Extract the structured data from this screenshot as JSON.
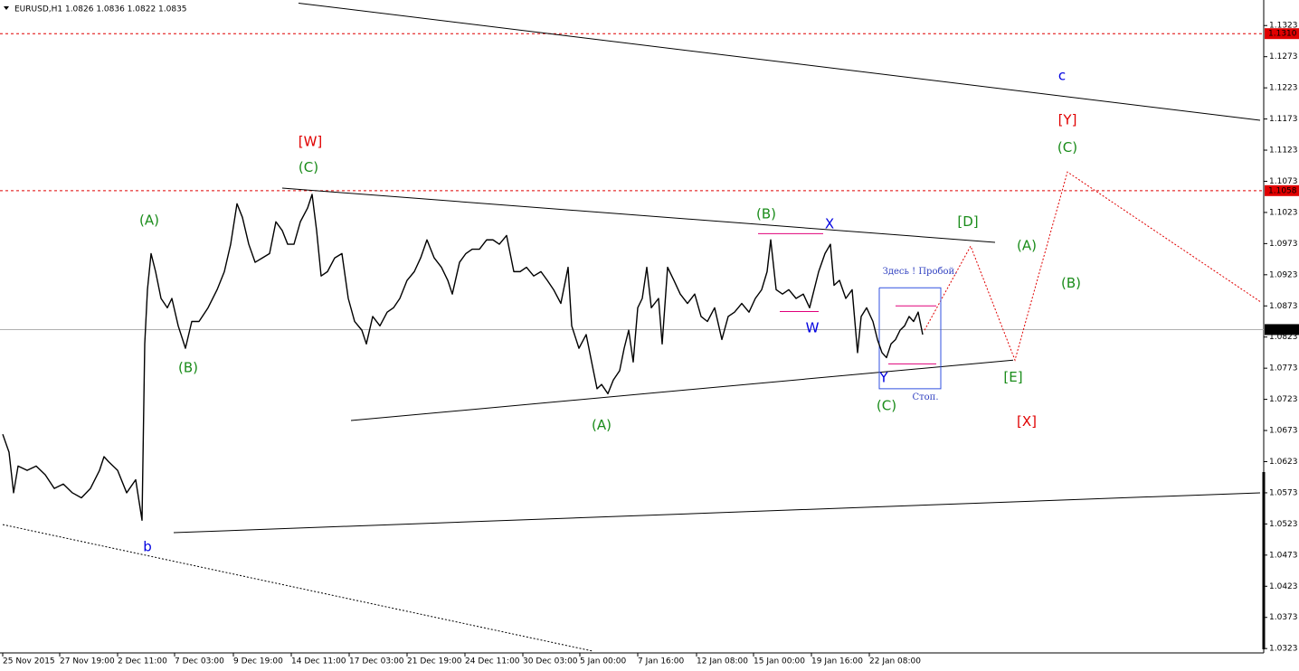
{
  "chart_data": {
    "type": "line",
    "title": "EURUSD,H1  1.0826 1.0836 1.0822 1.0835",
    "xlim": [
      0,
      1396
    ],
    "ylim": [
      1.0316,
      1.1364
    ],
    "xticks": [
      {
        "value": 3,
        "label": "25 Nov 2015"
      },
      {
        "value": 66,
        "label": "27 Nov 19:00"
      },
      {
        "value": 130,
        "label": "2 Dec 11:00"
      },
      {
        "value": 193,
        "label": "7 Dec 03:00"
      },
      {
        "value": 258,
        "label": "9 Dec 19:00"
      },
      {
        "value": 322,
        "label": "14 Dec 11:00"
      },
      {
        "value": 386,
        "label": "17 Dec 03:00"
      },
      {
        "value": 450,
        "label": "21 Dec 19:00"
      },
      {
        "value": 514,
        "label": "24 Dec 11:00"
      },
      {
        "value": 578,
        "label": "30 Dec 03:00"
      },
      {
        "value": 641,
        "label": "5 Jan 00:00"
      },
      {
        "value": 705,
        "label": "7 Jan 16:00"
      },
      {
        "value": 770,
        "label": "12 Jan 08:00"
      },
      {
        "value": 833,
        "label": "15 Jan 00:00"
      },
      {
        "value": 897,
        "label": "19 Jan 16:00"
      },
      {
        "value": 961,
        "label": "22 Jan 08:00"
      }
    ],
    "yticks": [
      1.1323,
      1.1273,
      1.1223,
      1.1173,
      1.1123,
      1.1073,
      1.1023,
      1.0973,
      1.0923,
      1.0873,
      1.0823,
      1.0773,
      1.0723,
      1.0673,
      1.0623,
      1.0573,
      1.0523,
      1.0473,
      1.0423,
      1.0373,
      1.0323
    ],
    "levels": [
      {
        "value": 1.131,
        "label": "1.1310",
        "color": "#e00000",
        "style": "dashed"
      },
      {
        "value": 1.1058,
        "label": "1.1058",
        "color": "#e00000",
        "style": "dashed"
      },
      {
        "value": 1.0835,
        "label": "1.0835",
        "color": "#b0b0b0",
        "style": "solid"
      }
    ],
    "series": [
      {
        "name": "EURUSD",
        "color": "#000000",
        "x": [
          3,
          10,
          15,
          20,
          30,
          40,
          50,
          60,
          70,
          80,
          90,
          100,
          110,
          115,
          120,
          130,
          140,
          150,
          157,
          160,
          163,
          167,
          172,
          178,
          185,
          190,
          197,
          205,
          212,
          220,
          230,
          240,
          248,
          255,
          262,
          268,
          275,
          282,
          290,
          298,
          305,
          312,
          318,
          325,
          332,
          340,
          345,
          350,
          355,
          362,
          370,
          378,
          385,
          392,
          400,
          405,
          412,
          420,
          428,
          435,
          442,
          450,
          458,
          465,
          472,
          480,
          488,
          495,
          500,
          508,
          515,
          522,
          530,
          538,
          545,
          552,
          560,
          568,
          575,
          582,
          590,
          598,
          605,
          612,
          620,
          628,
          632,
          640,
          648,
          655,
          660,
          665,
          672,
          678,
          685,
          690,
          695,
          700,
          705,
          710,
          715,
          720,
          728,
          732,
          738,
          745,
          752,
          760,
          768,
          775,
          782,
          790,
          798,
          805,
          812,
          820,
          828,
          835,
          842,
          848,
          852,
          858,
          865,
          872,
          880,
          888,
          895,
          900,
          905,
          912,
          918,
          922,
          928,
          935,
          942,
          948,
          952,
          958,
          965,
          970,
          975,
          980,
          985,
          990,
          995,
          1000,
          1005,
          1010,
          1015,
          1020
        ],
        "values": [
          1.0667,
          1.0638,
          1.0573,
          1.0616,
          1.0609,
          1.0616,
          1.0602,
          1.058,
          1.0587,
          1.0573,
          1.0565,
          1.058,
          1.0609,
          1.0631,
          1.0623,
          1.0609,
          1.0573,
          1.0594,
          1.0529,
          1.0812,
          1.0899,
          1.0957,
          1.0928,
          1.0885,
          1.087,
          1.0885,
          1.0841,
          1.0805,
          1.0848,
          1.0848,
          1.087,
          1.0899,
          1.0928,
          1.0972,
          1.1037,
          1.1015,
          1.0972,
          1.0943,
          1.095,
          1.0957,
          1.1008,
          1.0994,
          1.0972,
          1.0972,
          1.1008,
          1.103,
          1.1052,
          1.0994,
          1.0921,
          1.0928,
          1.095,
          1.0957,
          1.0885,
          1.0848,
          1.0834,
          1.0812,
          1.0856,
          1.0841,
          1.0863,
          1.087,
          1.0885,
          1.0914,
          1.0928,
          1.095,
          1.0979,
          1.095,
          1.0935,
          1.0914,
          1.0892,
          1.0943,
          1.0957,
          1.0964,
          1.0964,
          1.0979,
          1.0979,
          1.0972,
          1.0986,
          1.0928,
          1.0928,
          1.0935,
          1.0921,
          1.0928,
          1.0914,
          1.0899,
          1.0877,
          1.0935,
          1.0841,
          1.0805,
          1.0827,
          1.0776,
          1.074,
          1.0747,
          1.0732,
          1.0754,
          1.0769,
          1.0805,
          1.0834,
          1.0783,
          1.087,
          1.0885,
          1.0935,
          1.087,
          1.0885,
          1.0812,
          1.0935,
          1.0914,
          1.0892,
          1.0877,
          1.0892,
          1.0856,
          1.0848,
          1.087,
          1.0819,
          1.0856,
          1.0863,
          1.0877,
          1.0863,
          1.0885,
          1.0899,
          1.0928,
          1.0979,
          1.0899,
          1.0892,
          1.0899,
          1.0885,
          1.0892,
          1.087,
          1.0899,
          1.0928,
          1.0957,
          1.0972,
          1.0906,
          1.0914,
          1.0885,
          1.0899,
          1.0798,
          1.0856,
          1.087,
          1.0848,
          1.0819,
          1.0798,
          1.079,
          1.0812,
          1.0819,
          1.0834,
          1.0841,
          1.0856,
          1.0848,
          1.0863,
          1.0827
        ]
      }
    ],
    "lines": [
      {
        "x": [
          330,
          1393
        ],
        "y": [
          1.1359,
          1.1171
        ],
        "color": "#000000",
        "style": "solid"
      },
      {
        "x": [
          312,
          1100
        ],
        "y": [
          1.1062,
          1.0975
        ],
        "color": "#000000",
        "style": "solid"
      },
      {
        "x": [
          388,
          1120
        ],
        "y": [
          1.0689,
          1.0786
        ],
        "color": "#000000",
        "style": "solid"
      },
      {
        "x": [
          192,
          1393
        ],
        "y": [
          1.0509,
          1.0573
        ],
        "color": "#000000",
        "style": "solid"
      },
      {
        "x": [
          3,
          655
        ],
        "y": [
          1.0522,
          1.0319
        ],
        "color": "#000000",
        "style": "dotted"
      },
      {
        "x": [
          1022,
          1073,
          1122,
          1180,
          1393
        ],
        "y": [
          1.0834,
          1.0969,
          1.0786,
          1.1088,
          1.088
        ],
        "color": "#e00000",
        "style": "dotted"
      },
      {
        "x": [
          838,
          910
        ],
        "y": [
          1.0989,
          1.0989
        ],
        "color": "#e0007a",
        "style": "solid"
      },
      {
        "x": [
          862,
          905
        ],
        "y": [
          1.0864,
          1.0864
        ],
        "color": "#e0007a",
        "style": "solid"
      },
      {
        "x": [
          990,
          1035
        ],
        "y": [
          1.0873,
          1.0873
        ],
        "color": "#e0007a",
        "style": "solid"
      },
      {
        "x": [
          982,
          1035
        ],
        "y": [
          1.078,
          1.078
        ],
        "color": "#e0007a",
        "style": "solid"
      },
      {
        "x": [
          972,
          1040,
          1040,
          972,
          972
        ],
        "y": [
          1.0902,
          1.0902,
          1.074,
          1.074,
          1.0902
        ],
        "color": "#3050e0",
        "style": "solid"
      }
    ],
    "annotations": [
      {
        "text": "[W]",
        "x": 343,
        "y": 1.1136,
        "color": "#e00000"
      },
      {
        "text": "(C)",
        "x": 341,
        "y": 1.1095,
        "color": "#1a8c1a"
      },
      {
        "text": "(A)",
        "x": 165,
        "y": 1.101,
        "color": "#1a8c1a"
      },
      {
        "text": "(B)",
        "x": 208,
        "y": 1.0773,
        "color": "#1a8c1a"
      },
      {
        "text": "b",
        "x": 163,
        "y": 1.0486,
        "color": "#0000e0"
      },
      {
        "text": "(A)",
        "x": 665,
        "y": 1.0681,
        "color": "#1a8c1a"
      },
      {
        "text": "(B)",
        "x": 847,
        "y": 1.102,
        "color": "#1a8c1a"
      },
      {
        "text": "X",
        "x": 917,
        "y": 1.1004,
        "color": "#0000e0"
      },
      {
        "text": "W",
        "x": 898,
        "y": 1.0837,
        "color": "#0000e0"
      },
      {
        "text": "Y",
        "x": 977,
        "y": 1.0757,
        "color": "#0000e0"
      },
      {
        "text": "(C)",
        "x": 980,
        "y": 1.0712,
        "color": "#1a8c1a"
      },
      {
        "text": "Здесь ! Пробой.",
        "x": 1017,
        "y": 1.0928,
        "color": "#3040c0"
      },
      {
        "text": "Стоп.",
        "x": 1023,
        "y": 1.0726,
        "color": "#3040c0"
      },
      {
        "text": "c",
        "x": 1174,
        "y": 1.1242,
        "color": "#0000e0"
      },
      {
        "text": "[Y]",
        "x": 1180,
        "y": 1.1171,
        "color": "#e00000"
      },
      {
        "text": "(C)",
        "x": 1180,
        "y": 1.1127,
        "color": "#1a8c1a"
      },
      {
        "text": "[D]",
        "x": 1070,
        "y": 1.1008,
        "color": "#1a8c1a"
      },
      {
        "text": "(A)",
        "x": 1135,
        "y": 1.0969,
        "color": "#1a8c1a"
      },
      {
        "text": "(B)",
        "x": 1184,
        "y": 1.0909,
        "color": "#1a8c1a"
      },
      {
        "text": "[E]",
        "x": 1120,
        "y": 1.0758,
        "color": "#1a8c1a"
      },
      {
        "text": "[X]",
        "x": 1135,
        "y": 1.0687,
        "color": "#e00000"
      }
    ]
  }
}
